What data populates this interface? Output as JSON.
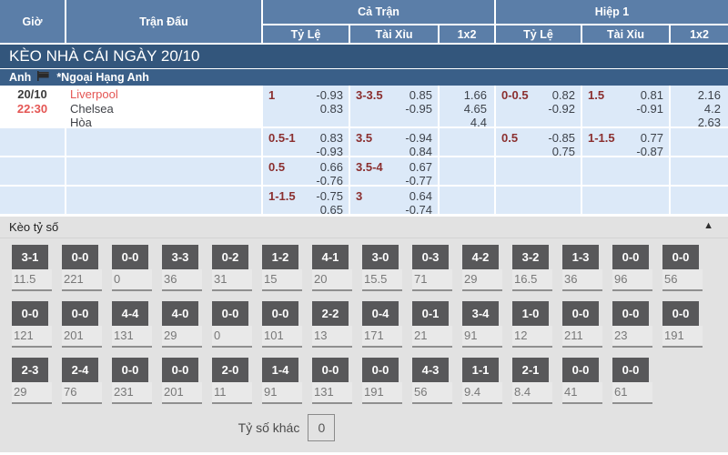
{
  "header": {
    "time": "Giờ",
    "match": "Trận Đấu",
    "full_time": "Cả Trận",
    "first_half": "Hiệp 1",
    "sub": {
      "handicap": "Tỷ Lệ",
      "over_under": "Tài Xỉu",
      "one_x_two": "1x2"
    }
  },
  "bands": {
    "title": "KÈO NHÀ CÁI NGÀY 20/10",
    "country": "Anh",
    "league": "*Ngoại Hạng Anh"
  },
  "match": {
    "date": "20/10",
    "time": "22:30",
    "home": "Liverpool",
    "away": "Chelsea",
    "draw": "Hòa"
  },
  "odds_rows": [
    {
      "cells": [
        {
          "hc": "1",
          "odds": [
            "-0.93",
            "0.83"
          ]
        },
        {
          "hc": "3-3.5",
          "odds": [
            "0.85",
            "-0.95"
          ]
        },
        {
          "x12": [
            "1.66",
            "4.65",
            "4.4"
          ]
        },
        {
          "hc": "0-0.5",
          "odds": [
            "0.82",
            "-0.92"
          ]
        },
        {
          "hc": "1.5",
          "odds": [
            "0.81",
            "-0.91"
          ]
        },
        {
          "x12": [
            "2.16",
            "4.2",
            "2.63"
          ]
        }
      ]
    },
    {
      "cells": [
        {
          "hc": "0.5-1",
          "odds": [
            "0.83",
            "-0.93"
          ]
        },
        {
          "hc": "3.5",
          "odds": [
            "-0.94",
            "0.84"
          ]
        },
        {
          "x12": []
        },
        {
          "hc": "0.5",
          "odds": [
            "-0.85",
            "0.75"
          ]
        },
        {
          "hc": "1-1.5",
          "odds": [
            "0.77",
            "-0.87"
          ]
        },
        {
          "x12": []
        }
      ]
    },
    {
      "cells": [
        {
          "hc": "0.5",
          "odds": [
            "0.66",
            "-0.76"
          ]
        },
        {
          "hc": "3.5-4",
          "odds": [
            "0.67",
            "-0.77"
          ]
        },
        {
          "x12": []
        },
        {},
        {},
        {
          "x12": []
        }
      ]
    },
    {
      "cells": [
        {
          "hc": "1-1.5",
          "odds": [
            "-0.75",
            "0.65"
          ]
        },
        {
          "hc": "3",
          "odds": [
            "0.64",
            "-0.74"
          ]
        },
        {
          "x12": []
        },
        {},
        {},
        {
          "x12": []
        }
      ]
    }
  ],
  "score_section": {
    "title": "Kèo tỷ số",
    "collapse_icon": "▲",
    "rows": [
      [
        {
          "s": "3-1",
          "v": "11.5"
        },
        {
          "s": "0-0",
          "v": "221"
        },
        {
          "s": "0-0",
          "v": "0"
        },
        {
          "s": "3-3",
          "v": "36"
        },
        {
          "s": "0-2",
          "v": "31"
        },
        {
          "s": "1-2",
          "v": "15"
        },
        {
          "s": "4-1",
          "v": "20"
        },
        {
          "s": "3-0",
          "v": "15.5"
        },
        {
          "s": "0-3",
          "v": "71"
        },
        {
          "s": "4-2",
          "v": "29"
        },
        {
          "s": "3-2",
          "v": "16.5"
        },
        {
          "s": "1-3",
          "v": "36"
        },
        {
          "s": "0-0",
          "v": "96"
        },
        {
          "s": "0-0",
          "v": "56"
        }
      ],
      [
        {
          "s": "0-0",
          "v": "121"
        },
        {
          "s": "0-0",
          "v": "201"
        },
        {
          "s": "4-4",
          "v": "131"
        },
        {
          "s": "4-0",
          "v": "29"
        },
        {
          "s": "0-0",
          "v": "0"
        },
        {
          "s": "0-0",
          "v": "101"
        },
        {
          "s": "2-2",
          "v": "13"
        },
        {
          "s": "0-4",
          "v": "171"
        },
        {
          "s": "0-1",
          "v": "21"
        },
        {
          "s": "3-4",
          "v": "91"
        },
        {
          "s": "1-0",
          "v": "12"
        },
        {
          "s": "0-0",
          "v": "211"
        },
        {
          "s": "0-0",
          "v": "23"
        },
        {
          "s": "0-0",
          "v": "191"
        }
      ],
      [
        {
          "s": "2-3",
          "v": "29"
        },
        {
          "s": "2-4",
          "v": "76"
        },
        {
          "s": "0-0",
          "v": "231"
        },
        {
          "s": "0-0",
          "v": "201"
        },
        {
          "s": "2-0",
          "v": "11"
        },
        {
          "s": "1-4",
          "v": "91"
        },
        {
          "s": "0-0",
          "v": "131"
        },
        {
          "s": "0-0",
          "v": "191"
        },
        {
          "s": "4-3",
          "v": "56"
        },
        {
          "s": "1-1",
          "v": "9.4"
        },
        {
          "s": "2-1",
          "v": "8.4"
        },
        {
          "s": "0-0",
          "v": "41"
        },
        {
          "s": "0-0",
          "v": "61"
        }
      ]
    ],
    "other_label": "Tỷ số khác",
    "other_value": "0"
  },
  "colors": {
    "header_blue": "#5b7ea8",
    "band_blue": "#33567c",
    "league_blue": "#3a5f88",
    "row_blue": "#dce9f8",
    "handicap_maroon": "#8b2f2f",
    "highlight_red": "#e45553",
    "badge_gray": "#58585a",
    "section_bg": "#e2e2e2"
  }
}
